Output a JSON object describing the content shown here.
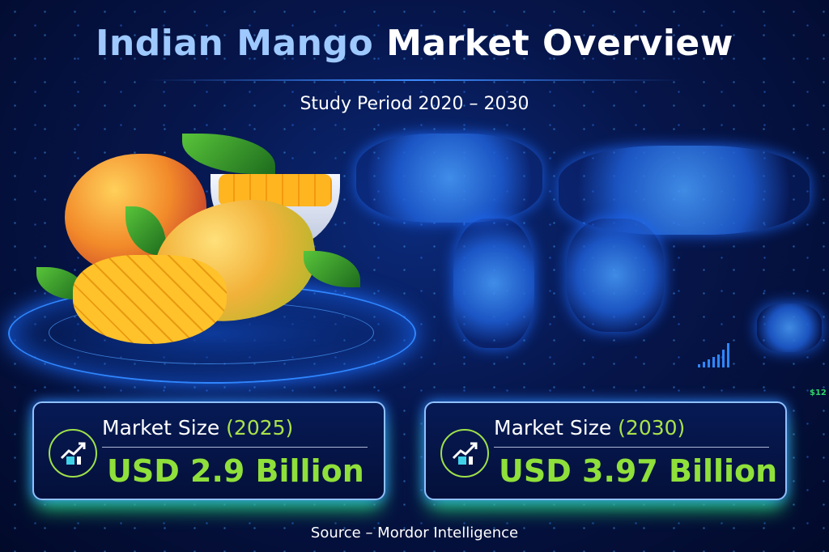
{
  "header": {
    "title_highlight": "Indian Mango",
    "title_rest": "Market Overview",
    "subtitle": "Study Period 2020 – 2030"
  },
  "cards": [
    {
      "label": "Market Size",
      "year": "(2025)",
      "value": "USD 2.9 Billion",
      "icon": "chart-growth-icon"
    },
    {
      "label": "Market Size",
      "year": "(2030)",
      "value": "USD 3.97 Billion",
      "icon": "chart-growth-icon"
    }
  ],
  "footer": {
    "source": "Source – Mordor Intelligence"
  },
  "ticker": "$12",
  "colors": {
    "accent_green": "#8fe03a",
    "title_blue": "#9ec9ff",
    "background": "#06154a"
  }
}
